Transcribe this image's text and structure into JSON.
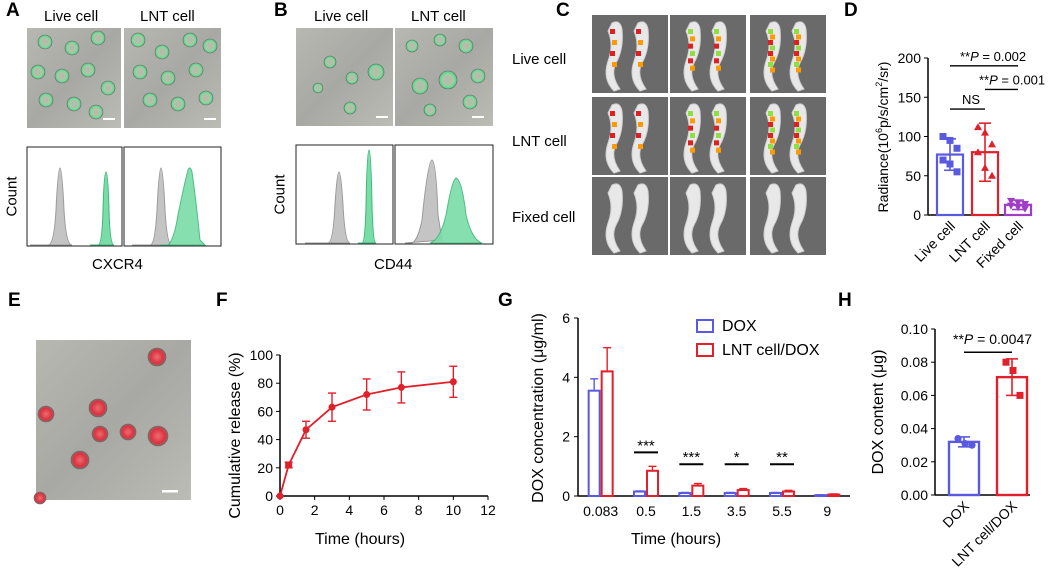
{
  "panel_letters": {
    "A": "A",
    "B": "B",
    "C": "C",
    "D": "D",
    "E": "E",
    "F": "F",
    "G": "G",
    "H": "H"
  },
  "A": {
    "col1": "Live cell",
    "col2": "LNT cell",
    "ylabel": "Count",
    "xlabel": "CXCR4"
  },
  "B": {
    "col1": "Live cell",
    "col2": "LNT cell",
    "ylabel": "Count",
    "xlabel": "CD44"
  },
  "C": {
    "rows": [
      "Live cell",
      "LNT cell",
      "Fixed cell"
    ]
  },
  "colors": {
    "blue": "#5a5ae0",
    "red": "#e0202a",
    "purple": "#a03cc8",
    "green": "#3cc87a",
    "gray": "#bdbdbd"
  },
  "chart_data": [
    {
      "panel": "D",
      "type": "bar",
      "categories": [
        "Live cell",
        "LNT cell",
        "Fixed cell"
      ],
      "values": [
        77,
        80,
        13
      ],
      "errors": [
        20,
        37,
        6
      ],
      "points": [
        [
          100,
          95,
          85,
          70,
          65,
          55
        ],
        [
          112,
          105,
          90,
          80,
          60,
          50
        ],
        [
          18,
          16,
          14,
          12,
          10,
          8
        ]
      ],
      "ylabel_parts": [
        "Radiance(10",
        "6",
        "p/s/cm",
        "2",
        "/sr)"
      ],
      "ylim": [
        0,
        200
      ],
      "yticks": [
        0,
        50,
        100,
        150,
        200
      ],
      "annotations": [
        {
          "stars": "**",
          "label": "P",
          "text": " = 0.002"
        },
        {
          "stars": "**",
          "label": "P",
          "text": " = 0.001"
        },
        {
          "text": "NS"
        }
      ]
    },
    {
      "panel": "F",
      "type": "line",
      "x": [
        0,
        0.5,
        1.5,
        3,
        5,
        7,
        10
      ],
      "y": [
        0,
        22,
        47,
        63,
        72,
        77,
        81
      ],
      "yerr": [
        0,
        2,
        6,
        10,
        11,
        11,
        11
      ],
      "xlabel": "Time (hours)",
      "ylabel": "Cumulative release (%)",
      "xlim": [
        0,
        12
      ],
      "ylim": [
        0,
        100
      ],
      "xticks": [
        0,
        2,
        4,
        6,
        8,
        10,
        12
      ],
      "yticks": [
        0,
        20,
        40,
        60,
        80,
        100
      ]
    },
    {
      "panel": "G",
      "type": "bar",
      "categories": [
        "0.083",
        "0.5",
        "1.5",
        "3.5",
        "5.5",
        "9"
      ],
      "series": [
        {
          "name": "DOX",
          "values": [
            3.55,
            0.15,
            0.1,
            0.1,
            0.1,
            0.03
          ],
          "errors": [
            0.4,
            0.02,
            0.02,
            0.02,
            0.02,
            0.01
          ]
        },
        {
          "name": "LNT cell/DOX",
          "values": [
            4.2,
            0.85,
            0.35,
            0.2,
            0.15,
            0.05
          ],
          "errors": [
            0.8,
            0.15,
            0.07,
            0.05,
            0.04,
            0.02
          ]
        }
      ],
      "significance": [
        "",
        "***",
        "***",
        "*",
        "**",
        ""
      ],
      "xlabel": "Time (hours)",
      "ylabel": "DOX concentration (μg/ml)",
      "ylim": [
        0,
        6
      ],
      "yticks": [
        0,
        2,
        4,
        6
      ]
    },
    {
      "panel": "H",
      "type": "bar",
      "categories": [
        "DOX",
        "LNT cell/DOX"
      ],
      "values": [
        0.032,
        0.071
      ],
      "errors": [
        0.003,
        0.011
      ],
      "points": [
        [
          0.034,
          0.031,
          0.03
        ],
        [
          0.08,
          0.075,
          0.06
        ]
      ],
      "ylabel": "DOX content (μg)",
      "ylim": [
        0,
        0.1
      ],
      "yticks": [
        0.0,
        0.02,
        0.04,
        0.06,
        0.08,
        0.1
      ],
      "annotation": {
        "stars": "**",
        "label": "P",
        "text": " = 0.0047"
      }
    }
  ]
}
